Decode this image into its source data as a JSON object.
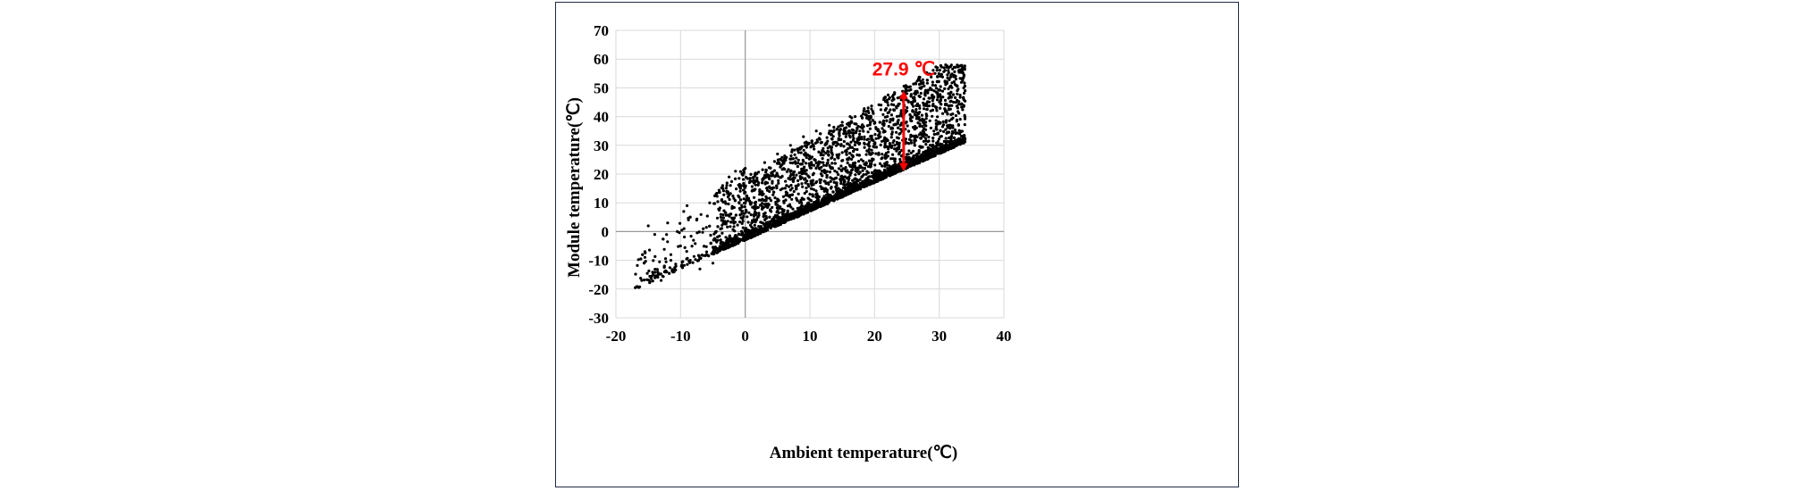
{
  "chart_data": {
    "type": "scatter",
    "title": "",
    "xlabel": "Ambient temperature(℃)",
    "ylabel": "Module temperature(℃)",
    "xlim": [
      -20,
      40
    ],
    "ylim": [
      -30,
      70
    ],
    "x_ticks": [
      -20,
      -10,
      0,
      10,
      20,
      30,
      40
    ],
    "y_ticks": [
      -30,
      -20,
      -10,
      0,
      10,
      20,
      30,
      40,
      50,
      60,
      70
    ],
    "grid": "on",
    "marker_color": "#000000",
    "annotation": {
      "text": "27.9 ℃",
      "color": "#ff0000",
      "arrow_x": 24.5,
      "arrow_y_top": 49,
      "arrow_y_bottom": 21
    },
    "point_cloud": {
      "description_of_envelope": "upper",
      "approx_points": 4000
    },
    "sample_points": [
      [
        -17,
        -19.5
      ],
      [
        -16,
        -17
      ],
      [
        -15.5,
        -7
      ],
      [
        -15,
        2
      ],
      [
        -14,
        -1
      ],
      [
        -13.5,
        -15
      ],
      [
        -13,
        -17
      ],
      [
        -12.5,
        -12
      ],
      [
        -12,
        3
      ],
      [
        -11.5,
        -10
      ],
      [
        -11,
        -14
      ],
      [
        -10.5,
        0
      ],
      [
        -10,
        -5
      ],
      [
        -9.5,
        7
      ],
      [
        -9,
        9
      ],
      [
        -8.5,
        -10
      ],
      [
        -8,
        -3
      ],
      [
        -7.5,
        4
      ],
      [
        -7,
        -13
      ],
      [
        -6.5,
        1
      ],
      [
        -6,
        -8
      ],
      [
        -5.5,
        10
      ],
      [
        -5,
        -11
      ],
      [
        -4.5,
        13
      ],
      [
        -4,
        -6
      ],
      [
        -3.5,
        16
      ],
      [
        -3,
        -2
      ],
      [
        -2.5,
        19
      ],
      [
        -2,
        -4
      ],
      [
        -1.5,
        21
      ],
      [
        -1,
        -1
      ],
      [
        -0.5,
        20
      ],
      [
        0,
        0
      ],
      [
        0,
        22
      ],
      [
        1,
        3
      ],
      [
        1.5,
        20
      ],
      [
        2,
        5
      ],
      [
        3,
        24
      ],
      [
        4,
        7
      ],
      [
        5,
        27
      ],
      [
        6,
        10
      ],
      [
        7,
        30
      ],
      [
        8,
        11
      ],
      [
        9,
        33
      ],
      [
        10,
        13
      ],
      [
        11,
        35
      ],
      [
        12,
        15
      ],
      [
        13,
        37
      ],
      [
        14,
        17
      ],
      [
        15,
        38
      ],
      [
        16,
        18
      ],
      [
        17,
        40
      ],
      [
        18,
        19
      ],
      [
        19,
        42
      ],
      [
        20,
        21
      ],
      [
        21,
        44
      ],
      [
        22,
        22
      ],
      [
        23,
        46
      ],
      [
        24,
        24
      ],
      [
        25,
        48
      ],
      [
        26,
        26
      ],
      [
        27,
        50
      ],
      [
        28,
        28
      ],
      [
        29,
        52
      ],
      [
        30,
        30
      ],
      [
        31,
        58
      ],
      [
        32,
        34
      ],
      [
        33,
        56
      ],
      [
        34,
        49
      ]
    ]
  }
}
